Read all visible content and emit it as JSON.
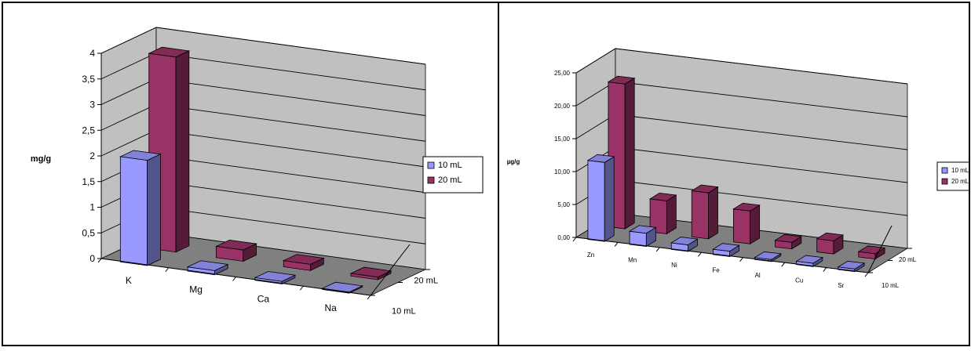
{
  "chart_data": [
    {
      "type": "bar",
      "subtype": "3d-clustered-column",
      "ylabel": "mg/g",
      "xlabel": "",
      "categories": [
        "K",
        "Mg",
        "Ca",
        "Na"
      ],
      "y_ticks": [
        "0",
        "0,5",
        "1",
        "1,5",
        "2",
        "2,5",
        "3",
        "3,5",
        "4"
      ],
      "ylim": [
        0,
        4
      ],
      "depth_labels": [
        "10 mL",
        "20 mL"
      ],
      "series": [
        {
          "name": "10 mL",
          "values": [
            2.05,
            0.08,
            0.05,
            0.02
          ],
          "color": "#9999ff"
        },
        {
          "name": "20 mL",
          "values": [
            3.8,
            0.22,
            0.12,
            0.05
          ],
          "color": "#993366"
        }
      ],
      "legend_position": "right",
      "grid": true
    },
    {
      "type": "bar",
      "subtype": "3d-clustered-column",
      "ylabel": "µg/g",
      "xlabel": "",
      "categories": [
        "Zn",
        "Mn",
        "Ni",
        "Fe",
        "Al",
        "Cu",
        "Sr"
      ],
      "y_ticks": [
        "0,00",
        "5,00",
        "10,00",
        "15,00",
        "20,00",
        "25,00"
      ],
      "ylim": [
        0,
        25
      ],
      "depth_labels": [
        "10 mL",
        "20 mL"
      ],
      "series": [
        {
          "name": "10 mL",
          "values": [
            12.0,
            2.0,
            1.0,
            0.8,
            0.3,
            0.5,
            0.4
          ],
          "color": "#9999ff"
        },
        {
          "name": "20 mL",
          "values": [
            22.0,
            5.0,
            7.0,
            5.0,
            1.0,
            2.0,
            0.8
          ],
          "color": "#993366"
        }
      ],
      "legend_position": "right",
      "grid": true
    }
  ]
}
